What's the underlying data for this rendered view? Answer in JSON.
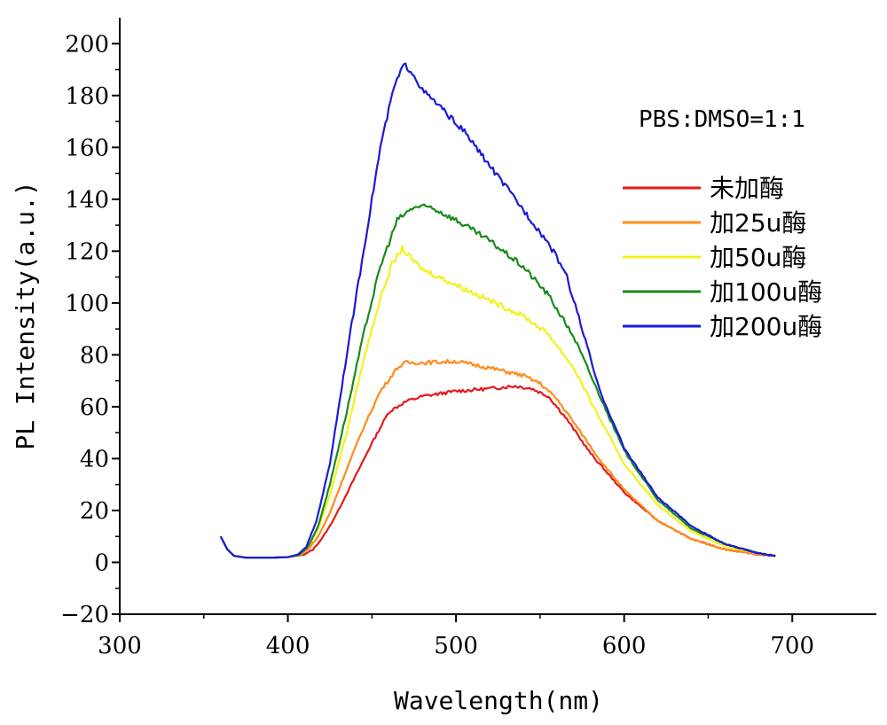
{
  "chart_data": {
    "type": "line",
    "title": "",
    "xlabel": "Wavelength(nm)",
    "ylabel": "PL  Intensity(a.u.)",
    "xlim": [
      300,
      750
    ],
    "ylim": [
      -20,
      210
    ],
    "xticks": [
      300,
      400,
      500,
      600,
      700
    ],
    "yticks": [
      -20,
      0,
      20,
      40,
      60,
      80,
      100,
      120,
      140,
      160,
      180,
      200
    ],
    "annotation": "PBS:DMSO=1:1",
    "legend_position": "right",
    "grid": false,
    "series": [
      {
        "name": "未加酶",
        "color": "#e41a1c",
        "points": [
          [
            360,
            10
          ],
          [
            364,
            5
          ],
          [
            368,
            2.5
          ],
          [
            375,
            1.8
          ],
          [
            390,
            1.8
          ],
          [
            400,
            2
          ],
          [
            410,
            3
          ],
          [
            415,
            5
          ],
          [
            420,
            9
          ],
          [
            425,
            14
          ],
          [
            430,
            20
          ],
          [
            440,
            33
          ],
          [
            450,
            46
          ],
          [
            460,
            58
          ],
          [
            470,
            62
          ],
          [
            480,
            64
          ],
          [
            500,
            66
          ],
          [
            520,
            67
          ],
          [
            535,
            68
          ],
          [
            545,
            67
          ],
          [
            555,
            64
          ],
          [
            565,
            56
          ],
          [
            580,
            42
          ],
          [
            600,
            27
          ],
          [
            620,
            16
          ],
          [
            640,
            9
          ],
          [
            660,
            5
          ],
          [
            680,
            3
          ],
          [
            690,
            2.5
          ]
        ]
      },
      {
        "name": "加25u酶",
        "color": "#ff8c1a",
        "points": [
          [
            360,
            10
          ],
          [
            364,
            5
          ],
          [
            368,
            2.5
          ],
          [
            375,
            1.8
          ],
          [
            390,
            1.8
          ],
          [
            400,
            2
          ],
          [
            408,
            3
          ],
          [
            412,
            5
          ],
          [
            418,
            10
          ],
          [
            425,
            19
          ],
          [
            435,
            36
          ],
          [
            445,
            52
          ],
          [
            455,
            66
          ],
          [
            465,
            75
          ],
          [
            470,
            77
          ],
          [
            480,
            77
          ],
          [
            500,
            77.5
          ],
          [
            520,
            75
          ],
          [
            540,
            72
          ],
          [
            550,
            69
          ],
          [
            560,
            63
          ],
          [
            570,
            54
          ],
          [
            585,
            40
          ],
          [
            600,
            28
          ],
          [
            620,
            16
          ],
          [
            640,
            9
          ],
          [
            660,
            5
          ],
          [
            680,
            3
          ],
          [
            690,
            2.5
          ]
        ]
      },
      {
        "name": "加50u酶",
        "color": "#f2f21a",
        "points": [
          [
            360,
            10
          ],
          [
            364,
            5
          ],
          [
            368,
            2.5
          ],
          [
            375,
            1.8
          ],
          [
            390,
            1.8
          ],
          [
            400,
            2
          ],
          [
            407,
            3
          ],
          [
            412,
            6
          ],
          [
            418,
            13
          ],
          [
            425,
            26
          ],
          [
            435,
            50
          ],
          [
            445,
            78
          ],
          [
            455,
            102
          ],
          [
            462,
            115
          ],
          [
            468,
            121
          ],
          [
            472,
            118
          ],
          [
            480,
            113
          ],
          [
            500,
            107
          ],
          [
            520,
            101
          ],
          [
            540,
            95
          ],
          [
            555,
            88
          ],
          [
            570,
            75
          ],
          [
            585,
            56
          ],
          [
            600,
            38
          ],
          [
            620,
            22
          ],
          [
            640,
            12
          ],
          [
            660,
            6
          ],
          [
            680,
            3.5
          ],
          [
            690,
            2.5
          ]
        ]
      },
      {
        "name": "加100u酶",
        "color": "#1a8a1a",
        "points": [
          [
            360,
            10
          ],
          [
            364,
            5
          ],
          [
            368,
            2.5
          ],
          [
            375,
            1.8
          ],
          [
            390,
            1.8
          ],
          [
            400,
            2
          ],
          [
            407,
            3
          ],
          [
            412,
            6
          ],
          [
            418,
            14
          ],
          [
            425,
            30
          ],
          [
            435,
            58
          ],
          [
            445,
            88
          ],
          [
            455,
            114
          ],
          [
            465,
            132
          ],
          [
            475,
            137
          ],
          [
            485,
            137
          ],
          [
            500,
            132
          ],
          [
            520,
            124
          ],
          [
            540,
            114
          ],
          [
            555,
            103
          ],
          [
            570,
            87
          ],
          [
            585,
            65
          ],
          [
            600,
            43
          ],
          [
            620,
            24
          ],
          [
            640,
            13
          ],
          [
            660,
            7
          ],
          [
            680,
            3.5
          ],
          [
            690,
            2.5
          ]
        ]
      },
      {
        "name": "加200u酶",
        "color": "#1a1ad9",
        "points": [
          [
            360,
            10
          ],
          [
            364,
            5
          ],
          [
            368,
            2.5
          ],
          [
            375,
            1.8
          ],
          [
            390,
            1.8
          ],
          [
            400,
            2
          ],
          [
            406,
            3
          ],
          [
            411,
            6
          ],
          [
            417,
            16
          ],
          [
            425,
            38
          ],
          [
            435,
            80
          ],
          [
            445,
            120
          ],
          [
            455,
            160
          ],
          [
            463,
            183
          ],
          [
            469,
            192
          ],
          [
            474,
            189
          ],
          [
            480,
            182
          ],
          [
            490,
            176
          ],
          [
            505,
            166
          ],
          [
            520,
            153
          ],
          [
            540,
            136
          ],
          [
            555,
            123
          ],
          [
            565,
            112
          ],
          [
            575,
            90
          ],
          [
            585,
            67
          ],
          [
            600,
            44
          ],
          [
            620,
            25
          ],
          [
            640,
            14
          ],
          [
            660,
            7
          ],
          [
            680,
            3.5
          ],
          [
            690,
            2.5
          ]
        ]
      }
    ]
  }
}
